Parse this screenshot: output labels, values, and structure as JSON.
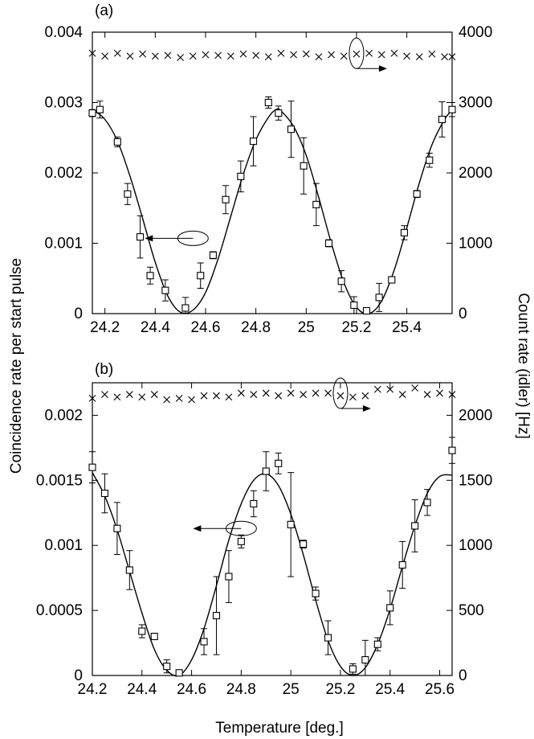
{
  "figure": {
    "xlabel": "Temperature [deg.]",
    "ylabel_left": "Coincidence rate per start pulse",
    "ylabel_right": "Count rate (idler) [Hz]"
  },
  "chart_data": [
    {
      "type": "scatter",
      "panel_label": "(a)",
      "xlim": [
        24.15,
        25.58
      ],
      "ylim_left": [
        0,
        0.004
      ],
      "ylim_right": [
        0,
        4000
      ],
      "x_ticks": [
        24.2,
        24.4,
        24.6,
        24.8,
        25,
        25.2,
        25.4
      ],
      "x_tick_labels": [
        "24.2",
        "24.4",
        "24.6",
        "24.8",
        "25",
        "25.2",
        "25.4"
      ],
      "y_ticks_left": [
        0,
        0.001,
        0.002,
        0.003,
        0.004
      ],
      "y_tick_labels_left": [
        "0",
        "0.001",
        "0.002",
        "0.003",
        "0.004"
      ],
      "y_ticks_right": [
        0,
        1000,
        2000,
        3000,
        4000
      ],
      "y_tick_labels_right": [
        "0",
        "1000",
        "2000",
        "3000",
        "4000"
      ],
      "coincidence": {
        "axis": "left",
        "marker": "square",
        "points": [
          {
            "x": 24.15,
            "y": 0.00285,
            "err": 5e-05
          },
          {
            "x": 24.18,
            "y": 0.0029,
            "err": 0.00012
          },
          {
            "x": 24.25,
            "y": 0.00244,
            "err": 7e-05
          },
          {
            "x": 24.29,
            "y": 0.0017,
            "err": 0.00015
          },
          {
            "x": 24.34,
            "y": 0.00109,
            "err": 0.0003
          },
          {
            "x": 24.38,
            "y": 0.00054,
            "err": 0.00012
          },
          {
            "x": 24.44,
            "y": 0.00033,
            "err": 0.00015
          },
          {
            "x": 24.52,
            "y": 8e-05,
            "err": 0.00015
          },
          {
            "x": 24.58,
            "y": 0.00054,
            "err": 0.00018
          },
          {
            "x": 24.63,
            "y": 0.00083,
            "err": 5e-05
          },
          {
            "x": 24.68,
            "y": 0.00162,
            "err": 0.0002
          },
          {
            "x": 24.74,
            "y": 0.00195,
            "err": 0.00022
          },
          {
            "x": 24.79,
            "y": 0.00245,
            "err": 0.00035
          },
          {
            "x": 24.85,
            "y": 0.003,
            "err": 8e-05
          },
          {
            "x": 24.89,
            "y": 0.00285,
            "err": 0.0001
          },
          {
            "x": 24.94,
            "y": 0.00262,
            "err": 0.0004
          },
          {
            "x": 24.99,
            "y": 0.0021,
            "err": 0.0004
          },
          {
            "x": 25.04,
            "y": 0.00155,
            "err": 0.0003
          },
          {
            "x": 25.09,
            "y": 0.001,
            "err": 5e-05
          },
          {
            "x": 25.14,
            "y": 0.00046,
            "err": 0.00015
          },
          {
            "x": 25.19,
            "y": 0.00012,
            "err": 0.00012
          },
          {
            "x": 25.24,
            "y": 4e-05,
            "err": 3e-05
          },
          {
            "x": 25.29,
            "y": 0.00023,
            "err": 0.0002
          },
          {
            "x": 25.34,
            "y": 0.00048,
            "err": 4e-05
          },
          {
            "x": 25.39,
            "y": 0.00115,
            "err": 0.0001
          },
          {
            "x": 25.44,
            "y": 0.0017,
            "err": 5e-05
          },
          {
            "x": 25.49,
            "y": 0.00218,
            "err": 0.0001
          },
          {
            "x": 25.54,
            "y": 0.00276,
            "err": 0.00025
          },
          {
            "x": 25.58,
            "y": 0.0029,
            "err": 0.0001
          }
        ]
      },
      "fit_curve": {
        "axis": "left",
        "points": [
          [
            24.15,
            0.0029
          ],
          [
            24.2,
            0.00276
          ],
          [
            24.25,
            0.00245
          ],
          [
            24.3,
            0.00195
          ],
          [
            24.35,
            0.00135
          ],
          [
            24.4,
            0.00073
          ],
          [
            24.45,
            0.00025
          ],
          [
            24.5,
            2e-05
          ],
          [
            24.55,
            5e-05
          ],
          [
            24.6,
            0.0003
          ],
          [
            24.65,
            0.00078
          ],
          [
            24.7,
            0.00138
          ],
          [
            24.75,
            0.00198
          ],
          [
            24.8,
            0.00247
          ],
          [
            24.85,
            0.00279
          ],
          [
            24.88,
            0.0029
          ],
          [
            24.9,
            0.00288
          ],
          [
            24.95,
            0.00266
          ],
          [
            25.0,
            0.00225
          ],
          [
            25.05,
            0.00165
          ],
          [
            25.1,
            0.001
          ],
          [
            25.15,
            0.00044
          ],
          [
            25.2,
            9e-05
          ],
          [
            25.25,
            0.0
          ],
          [
            25.3,
            0.00018
          ],
          [
            25.35,
            0.00062
          ],
          [
            25.4,
            0.00122
          ],
          [
            25.45,
            0.00186
          ],
          [
            25.5,
            0.0024
          ],
          [
            25.55,
            0.00276
          ],
          [
            25.58,
            0.00289
          ]
        ]
      },
      "count_rate": {
        "axis": "right",
        "marker": "cross",
        "x": [
          24.15,
          24.2,
          24.25,
          24.3,
          24.35,
          24.4,
          24.45,
          24.5,
          24.55,
          24.6,
          24.65,
          24.7,
          24.75,
          24.8,
          24.85,
          24.9,
          24.95,
          25.0,
          25.05,
          25.1,
          25.15,
          25.2,
          25.25,
          25.3,
          25.35,
          25.4,
          25.45,
          25.5,
          25.55,
          25.58
        ],
        "y": [
          3700,
          3660,
          3700,
          3660,
          3690,
          3660,
          3670,
          3640,
          3660,
          3680,
          3670,
          3660,
          3690,
          3670,
          3650,
          3700,
          3680,
          3690,
          3650,
          3680,
          3660,
          3690,
          3700,
          3680,
          3700,
          3660,
          3650,
          3690,
          3650,
          3650
        ]
      },
      "annotations": [
        {
          "series": "coincidence",
          "direction": "left",
          "x": 24.55,
          "y": 0.00107
        },
        {
          "series": "count_rate",
          "direction": "right",
          "x": 25.2,
          "y": 0.0037
        }
      ]
    },
    {
      "type": "scatter",
      "panel_label": "(b)",
      "xlim": [
        24.2,
        25.65
      ],
      "ylim_left": [
        0,
        0.00225
      ],
      "ylim_right": [
        0,
        2250
      ],
      "x_ticks": [
        24.2,
        24.4,
        24.6,
        24.8,
        25,
        25.2,
        25.4,
        25.6
      ],
      "x_tick_labels": [
        "24.2",
        "24.4",
        "24.6",
        "24.8",
        "25",
        "25.2",
        "25.4",
        "25.6"
      ],
      "y_ticks_left": [
        0,
        0.0005,
        0.001,
        0.0015,
        0.002
      ],
      "y_tick_labels_left": [
        "0",
        "0.0005",
        "0.001",
        "0.0015",
        "0.002"
      ],
      "y_ticks_right": [
        0,
        500,
        1000,
        1500,
        2000
      ],
      "y_tick_labels_right": [
        "0",
        "500",
        "1000",
        "1500",
        "2000"
      ],
      "coincidence": {
        "axis": "left",
        "marker": "square",
        "points": [
          {
            "x": 24.2,
            "y": 0.0016,
            "err": 0.00012
          },
          {
            "x": 24.25,
            "y": 0.0014,
            "err": 0.00015
          },
          {
            "x": 24.3,
            "y": 0.00113,
            "err": 0.0002
          },
          {
            "x": 24.35,
            "y": 0.00081,
            "err": 0.00015
          },
          {
            "x": 24.4,
            "y": 0.00034,
            "err": 5e-05
          },
          {
            "x": 24.45,
            "y": 0.0003,
            "err": 1e-05
          },
          {
            "x": 24.5,
            "y": 7e-05,
            "err": 5e-05
          },
          {
            "x": 24.55,
            "y": 2e-05,
            "err": 2e-05
          },
          {
            "x": 24.65,
            "y": 0.00026,
            "err": 0.0001
          },
          {
            "x": 24.7,
            "y": 0.00046,
            "err": 0.0003
          },
          {
            "x": 24.75,
            "y": 0.00076,
            "err": 0.0002
          },
          {
            "x": 24.8,
            "y": 0.00103,
            "err": 5e-05
          },
          {
            "x": 24.85,
            "y": 0.00132,
            "err": 0.0001
          },
          {
            "x": 24.9,
            "y": 0.00157,
            "err": 0.00015
          },
          {
            "x": 24.95,
            "y": 0.00163,
            "err": 8e-05
          },
          {
            "x": 25.0,
            "y": 0.00116,
            "err": 0.0004
          },
          {
            "x": 25.05,
            "y": 0.00101,
            "err": 3e-05
          },
          {
            "x": 25.1,
            "y": 0.00063,
            "err": 5e-05
          },
          {
            "x": 25.15,
            "y": 0.00029,
            "err": 0.00013
          },
          {
            "x": 25.25,
            "y": 5e-05,
            "err": 4e-05
          },
          {
            "x": 25.3,
            "y": 0.00012,
            "err": 0.00015
          },
          {
            "x": 25.35,
            "y": 0.00024,
            "err": 5e-05
          },
          {
            "x": 25.4,
            "y": 0.00052,
            "err": 0.00013
          },
          {
            "x": 25.45,
            "y": 0.00085,
            "err": 0.00018
          },
          {
            "x": 25.5,
            "y": 0.00115,
            "err": 0.0002
          },
          {
            "x": 25.55,
            "y": 0.00133,
            "err": 0.0001
          },
          {
            "x": 25.65,
            "y": 0.00173,
            "err": 0.0001
          }
        ]
      },
      "fit_curve": {
        "axis": "left",
        "points": [
          [
            24.2,
            0.00156
          ],
          [
            24.25,
            0.00138
          ],
          [
            24.3,
            0.00112
          ],
          [
            24.35,
            0.0008
          ],
          [
            24.4,
            0.00048
          ],
          [
            24.45,
            0.0002
          ],
          [
            24.5,
            4e-05
          ],
          [
            24.55,
            0.0
          ],
          [
            24.6,
            0.00012
          ],
          [
            24.65,
            0.00036
          ],
          [
            24.7,
            0.00069
          ],
          [
            24.75,
            0.00104
          ],
          [
            24.8,
            0.00132
          ],
          [
            24.85,
            0.0015
          ],
          [
            24.9,
            0.00155
          ],
          [
            24.95,
            0.00146
          ],
          [
            25.0,
            0.00124
          ],
          [
            25.05,
            0.00093
          ],
          [
            25.1,
            0.00058
          ],
          [
            25.15,
            0.00027
          ],
          [
            25.2,
            7e-05
          ],
          [
            25.25,
            0.0
          ],
          [
            25.3,
            6e-05
          ],
          [
            25.35,
            0.00024
          ],
          [
            25.4,
            0.00051
          ],
          [
            25.45,
            0.00084
          ],
          [
            25.5,
            0.00115
          ],
          [
            25.55,
            0.0014
          ],
          [
            25.6,
            0.00153
          ],
          [
            25.65,
            0.00154
          ]
        ]
      },
      "count_rate": {
        "axis": "right",
        "marker": "cross",
        "x": [
          24.2,
          24.25,
          24.3,
          24.35,
          24.4,
          24.45,
          24.5,
          24.55,
          24.6,
          24.65,
          24.7,
          24.75,
          24.8,
          24.85,
          24.9,
          24.95,
          25.0,
          25.05,
          25.1,
          25.15,
          25.2,
          25.25,
          25.3,
          25.35,
          25.4,
          25.45,
          25.5,
          25.55,
          25.6,
          25.65
        ],
        "y": [
          2130,
          2160,
          2140,
          2160,
          2140,
          2160,
          2120,
          2130,
          2120,
          2150,
          2150,
          2140,
          2170,
          2160,
          2170,
          2150,
          2170,
          2160,
          2170,
          2170,
          2150,
          2140,
          2150,
          2200,
          2200,
          2160,
          2210,
          2160,
          2170,
          2160
        ]
      },
      "annotations": [
        {
          "series": "coincidence",
          "direction": "left",
          "x": 24.8,
          "y": 0.00113
        },
        {
          "series": "count_rate",
          "direction": "right",
          "x": 25.2,
          "y": 0.00217
        }
      ]
    }
  ]
}
